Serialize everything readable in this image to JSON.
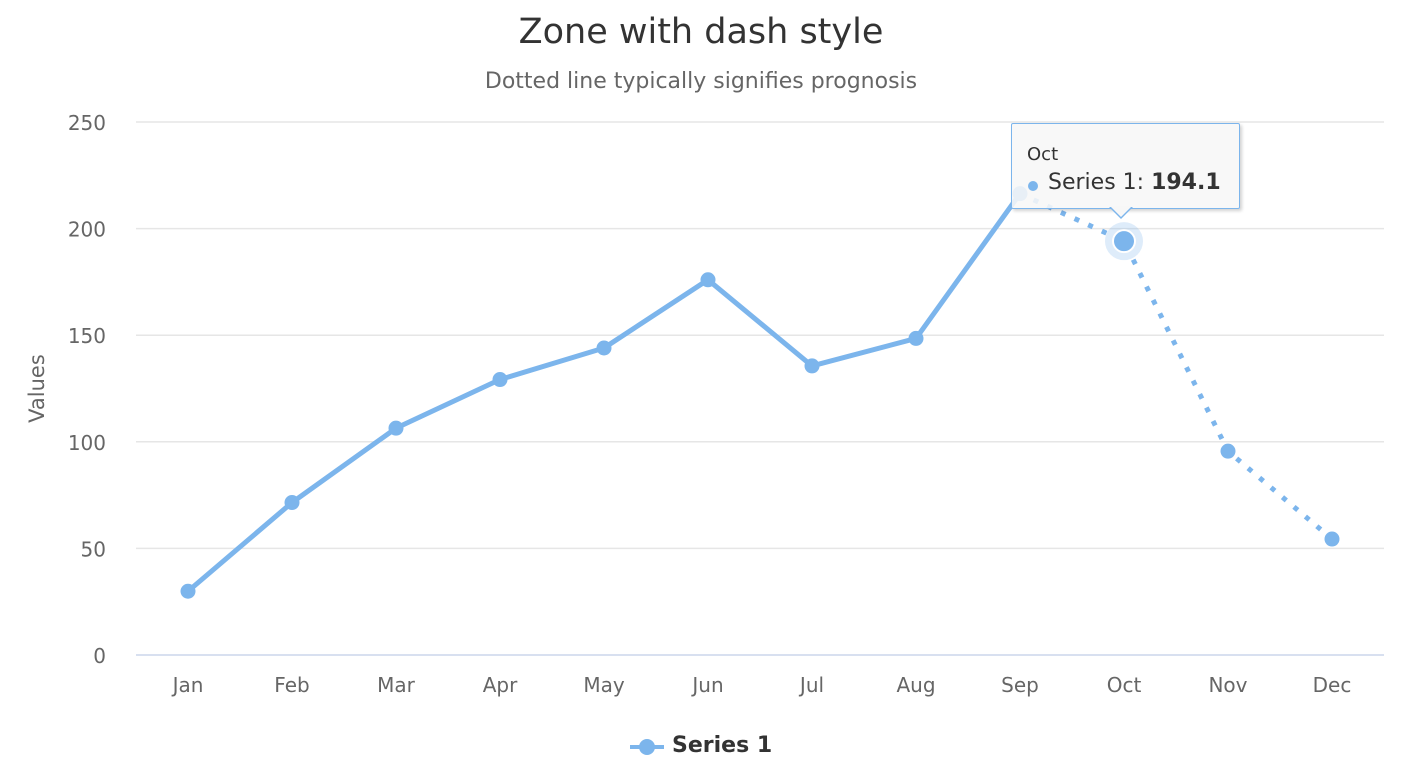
{
  "chart_data": {
    "type": "line",
    "title": "Zone with dash style",
    "subtitle": "Dotted line typically signifies prognosis",
    "ylabel": "Values",
    "xlabel": "",
    "ylim": [
      0,
      250
    ],
    "yticks": [
      0,
      50,
      100,
      150,
      200,
      250
    ],
    "categories": [
      "Jan",
      "Feb",
      "Mar",
      "Apr",
      "May",
      "Jun",
      "Jul",
      "Aug",
      "Sep",
      "Oct",
      "Nov",
      "Dec"
    ],
    "series": [
      {
        "name": "Series 1",
        "values": [
          29.9,
          71.5,
          106.4,
          129.2,
          144.0,
          176.0,
          135.6,
          148.5,
          216.4,
          194.1,
          95.6,
          54.4
        ],
        "color": "#7cb5ec",
        "zones": [
          {
            "style": "solid",
            "until_category": "Sep"
          },
          {
            "style": "dotted",
            "from_category": "Sep"
          }
        ]
      }
    ],
    "grid": true,
    "legend_position": "bottom-center"
  },
  "tooltip": {
    "category": "Oct",
    "series_name": "Series 1",
    "value_text": "194.1",
    "highlighted_index": 9
  },
  "legend": {
    "label": "Series 1"
  }
}
